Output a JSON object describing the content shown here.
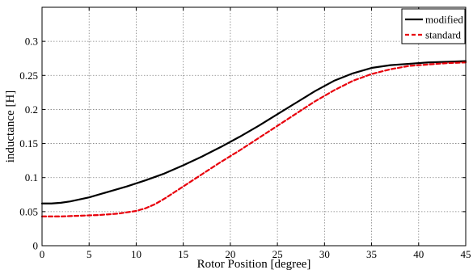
{
  "chart_data": {
    "type": "line",
    "title": "",
    "xlabel": "Rotor Position [degree]",
    "ylabel": "inductance [H]",
    "xlim": [
      0,
      45
    ],
    "ylim": [
      0,
      0.35
    ],
    "x_ticks": [
      "0",
      "5",
      "10",
      "15",
      "20",
      "25",
      "30",
      "35",
      "40",
      "45"
    ],
    "y_ticks": [
      "0",
      "0.05",
      "0.1",
      "0.15",
      "0.2",
      "0.25",
      "0.3"
    ],
    "grid": true,
    "legend_position": "top-right",
    "series": [
      {
        "name": "modified",
        "color": "#000000",
        "style": "solid",
        "x": [
          0,
          1,
          2,
          3,
          4,
          5,
          7,
          9,
          11,
          13,
          15,
          17,
          19,
          21,
          23,
          25,
          27,
          29,
          31,
          33,
          35,
          37,
          39,
          41,
          43,
          45
        ],
        "y": [
          0.062,
          0.062,
          0.063,
          0.065,
          0.068,
          0.071,
          0.079,
          0.087,
          0.096,
          0.106,
          0.118,
          0.131,
          0.145,
          0.16,
          0.176,
          0.193,
          0.21,
          0.227,
          0.242,
          0.253,
          0.261,
          0.265,
          0.267,
          0.269,
          0.27,
          0.271
        ]
      },
      {
        "name": "standard",
        "color": "#e8000b",
        "style": "dashed",
        "x": [
          0,
          2,
          4,
          6,
          8,
          10,
          11,
          12,
          13,
          14,
          15,
          17,
          19,
          21,
          23,
          25,
          27,
          29,
          31,
          33,
          35,
          37,
          39,
          41,
          43,
          45
        ],
        "y": [
          0.043,
          0.043,
          0.044,
          0.045,
          0.047,
          0.051,
          0.055,
          0.061,
          0.069,
          0.078,
          0.087,
          0.105,
          0.123,
          0.14,
          0.158,
          0.176,
          0.194,
          0.212,
          0.228,
          0.242,
          0.252,
          0.259,
          0.264,
          0.266,
          0.268,
          0.269
        ]
      }
    ]
  }
}
